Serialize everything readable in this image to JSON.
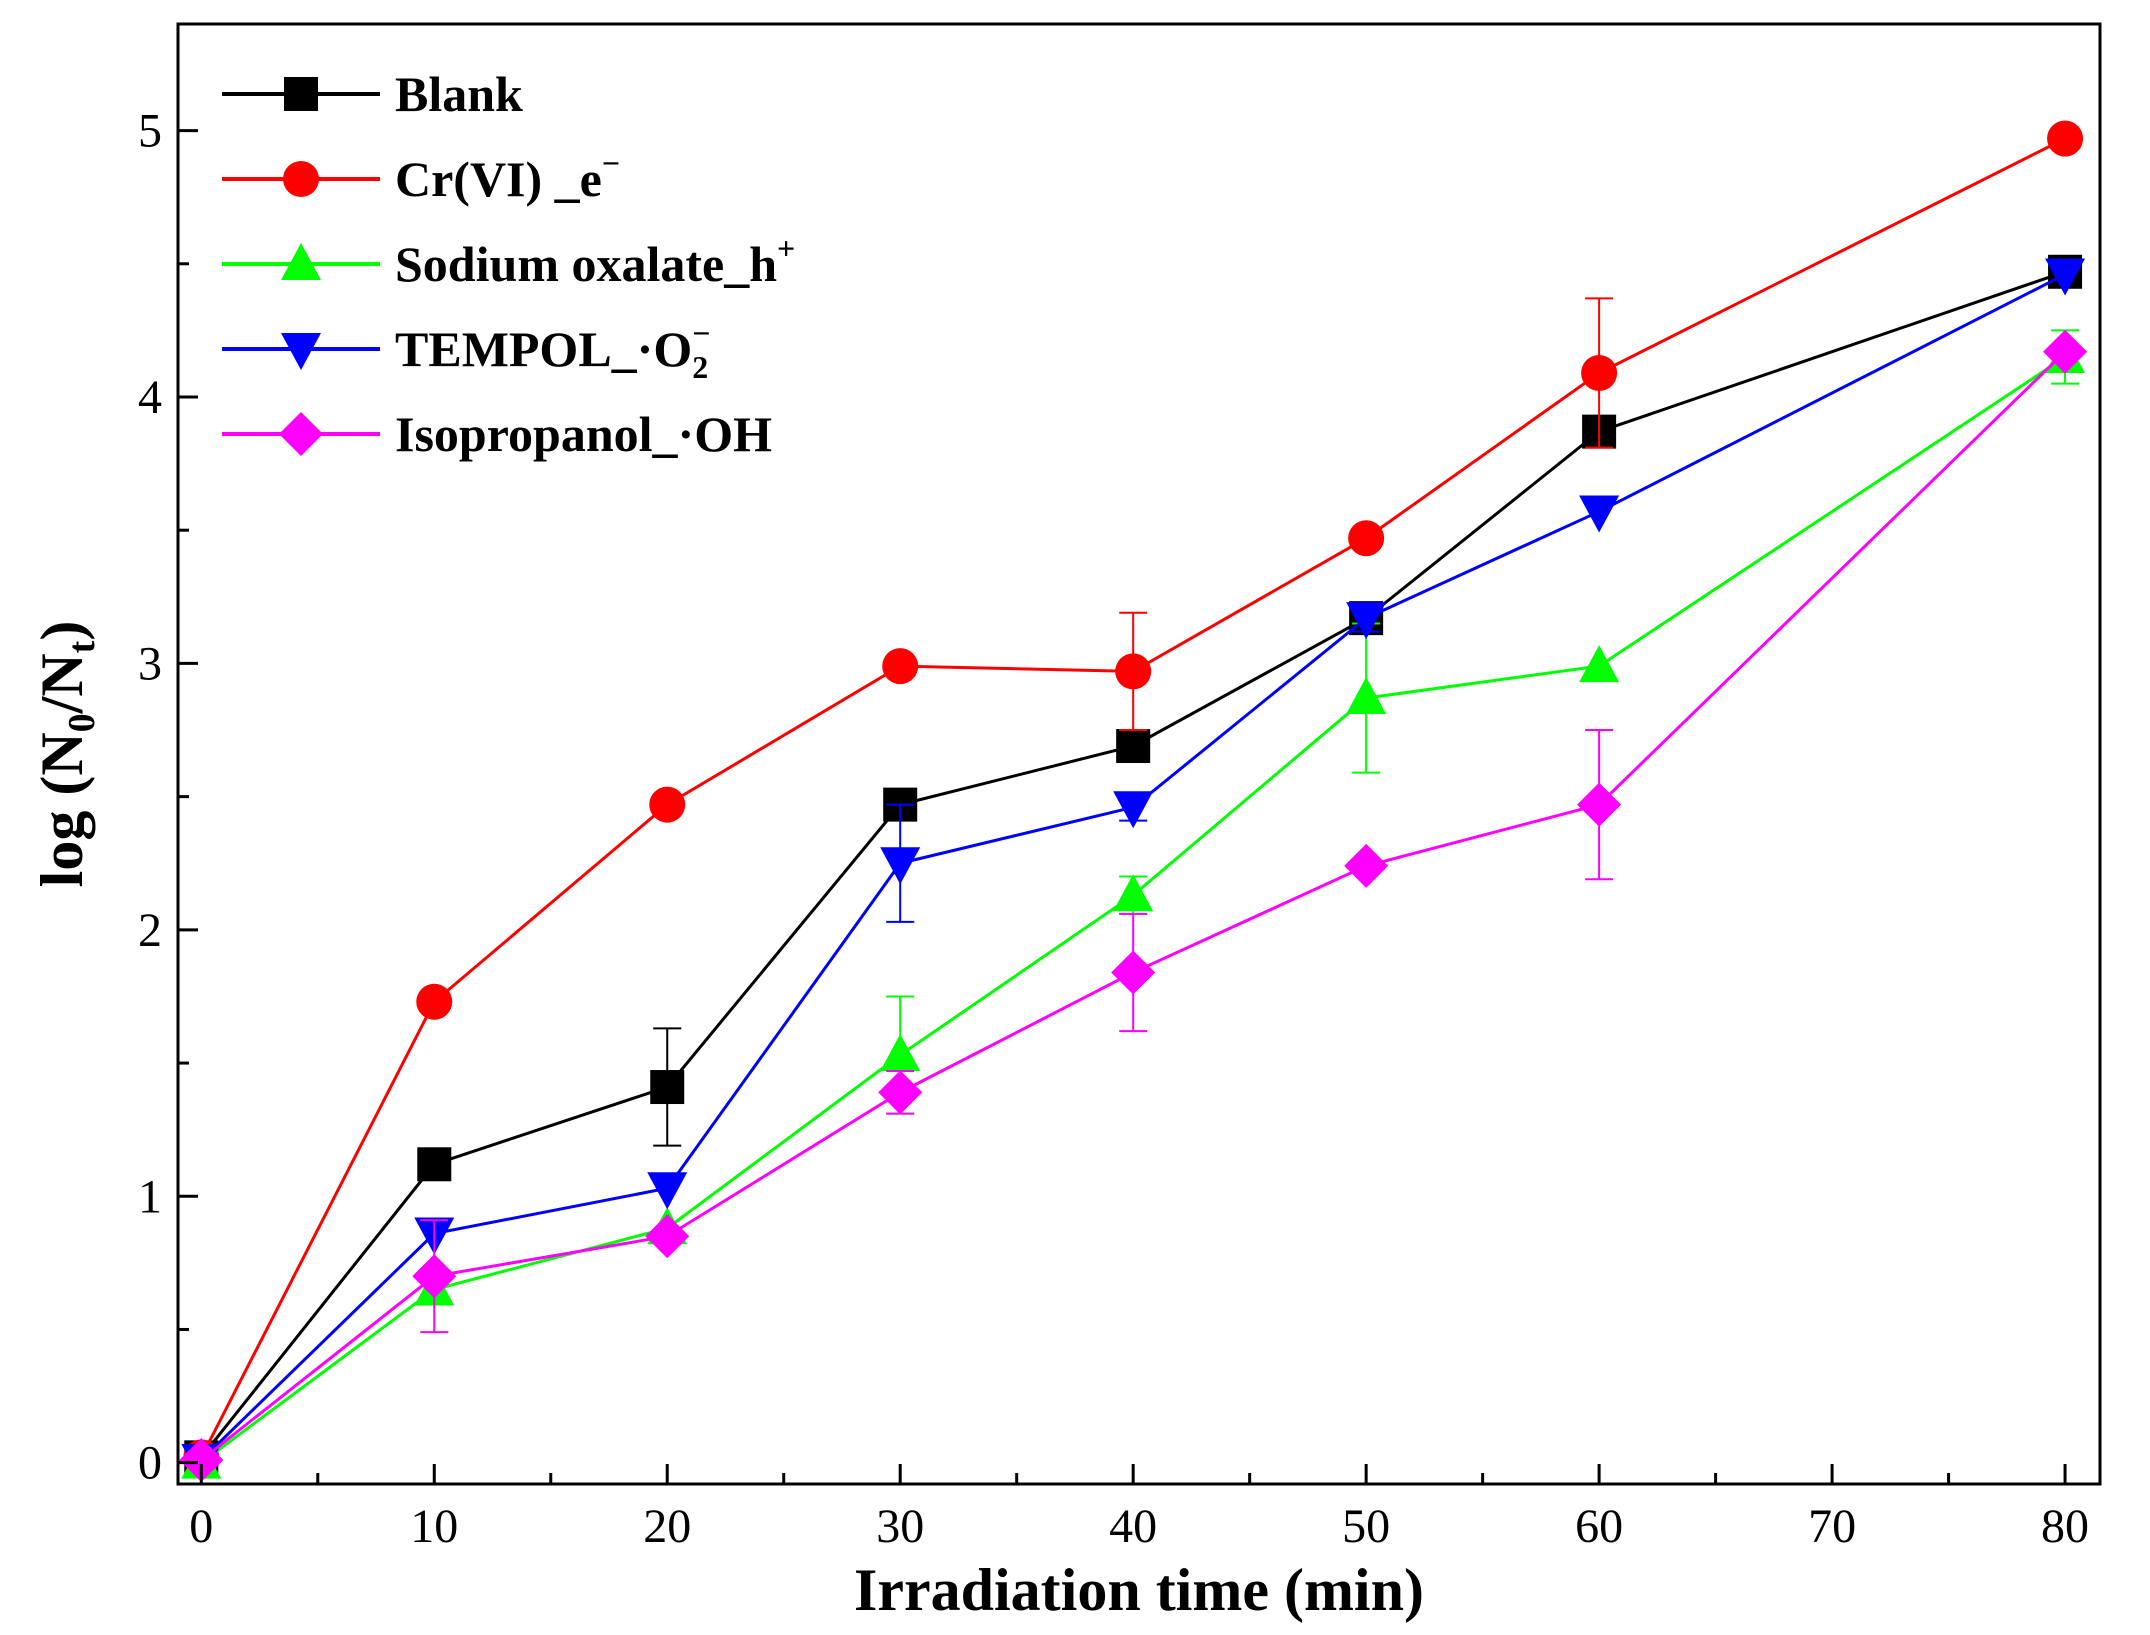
{
  "chart_data": {
    "type": "line",
    "title": "",
    "xlabel": "Irradiation time (min)",
    "ylabel": {
      "prefix": "log (N",
      "sub1": "0",
      "middle": "/N",
      "sub2": "t",
      "suffix": ")"
    },
    "xlim": [
      -1,
      81.5
    ],
    "ylim": [
      -0.08,
      5.4
    ],
    "xticks": [
      0,
      10,
      20,
      30,
      40,
      50,
      60,
      70,
      80
    ],
    "xtick_labels": [
      "0",
      "10",
      "20",
      "30",
      "40",
      "50",
      "60",
      "70",
      "80"
    ],
    "yticks": [
      0,
      1,
      2,
      3,
      4,
      5
    ],
    "ytick_labels": [
      "0",
      "1",
      "2",
      "3",
      "4",
      "5"
    ],
    "grid": false,
    "legend_position": "top-left",
    "x": [
      0,
      10,
      20,
      30,
      40,
      50,
      60,
      80
    ],
    "series": [
      {
        "id": "blank",
        "name": "Blank",
        "legend": {
          "main": "Blank"
        },
        "color": "#000000",
        "marker": "square",
        "values": [
          0.02,
          1.12,
          1.41,
          2.47,
          2.69,
          3.17,
          3.87,
          4.47
        ],
        "errors": [
          0,
          0.02,
          0.22,
          0.05,
          0.05,
          0.05,
          0.05,
          0.03
        ]
      },
      {
        "id": "crvi",
        "name": "Cr(VI) _e−",
        "legend": {
          "main": "Cr(VI) _e",
          "sup": "−"
        },
        "color": "#ff0000",
        "marker": "circle",
        "values": [
          0.02,
          1.73,
          2.47,
          2.99,
          2.97,
          3.47,
          4.09,
          4.97
        ],
        "errors": [
          0,
          0.03,
          0.03,
          0.03,
          0.22,
          0.03,
          0.28,
          0.03
        ]
      },
      {
        "id": "oxalate",
        "name": "Sodium oxalate_h+",
        "legend": {
          "main": "Sodium oxalate_h",
          "sup": "+"
        },
        "color": "#00ff00",
        "marker": "triangle-up",
        "values": [
          0.0,
          0.65,
          0.88,
          1.53,
          2.13,
          2.87,
          2.99,
          4.15
        ],
        "errors": [
          0,
          0.03,
          0.03,
          0.22,
          0.07,
          0.28,
          0.03,
          0.1
        ]
      },
      {
        "id": "tempol",
        "name": "TEMPOL_·O2−",
        "legend": {
          "main": "TEMPOL_·O",
          "sub": "2",
          "sup": "−"
        },
        "color": "#0000ff",
        "marker": "triangle-down",
        "values": [
          0.01,
          0.86,
          1.03,
          2.25,
          2.46,
          3.17,
          3.57,
          4.46
        ],
        "errors": [
          0,
          0.03,
          0.03,
          0.22,
          0.05,
          0.05,
          0.03,
          0.03
        ]
      },
      {
        "id": "isopropanol",
        "name": "Isopropanol_·OH",
        "legend": {
          "main": "Isopropanol_·OH"
        },
        "color": "#ff00ff",
        "marker": "diamond",
        "values": [
          0.01,
          0.7,
          0.85,
          1.39,
          1.84,
          2.24,
          2.47,
          4.17
        ],
        "errors": [
          0,
          0.21,
          0.03,
          0.08,
          0.22,
          0.03,
          0.28,
          0.03
        ]
      }
    ]
  }
}
